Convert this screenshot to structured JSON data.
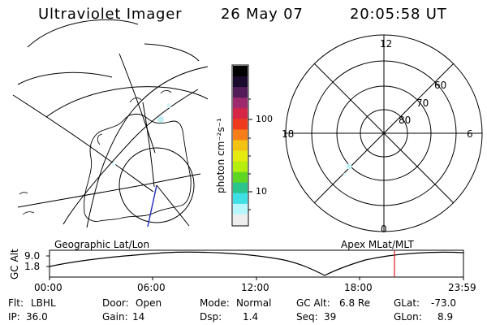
{
  "header": {
    "app_title": "Ultraviolet Imager",
    "date": "26 May 07",
    "time": "20:05:58 UT"
  },
  "colorbar": {
    "label": "photon cm⁻²s⁻¹",
    "ticks": [
      "100",
      "10"
    ],
    "colors": [
      "#000000",
      "#1a0b2e",
      "#531d5a",
      "#9c2a6d",
      "#d52645",
      "#f03a1d",
      "#f67d17",
      "#f2c313",
      "#e7ea11",
      "#b4ef10",
      "#5fd624",
      "#29c58c",
      "#3fe0e5",
      "#b7f6fb",
      "#eeeeee"
    ]
  },
  "panels": {
    "left_label": "Geographic Lat/Lon",
    "right_label": "Apex  MLat/MLT",
    "polar_labels": {
      "mlt_top": "12",
      "mlt_left": "18",
      "mlt_right": "6",
      "mlt_bottom": "0",
      "lat_60": "60",
      "lat_70": "70",
      "lat_80": "80"
    }
  },
  "timeline": {
    "ylabel": "GC Alt",
    "y_ticks": [
      "9.0",
      "1.8"
    ],
    "x_ticks": [
      "00:00",
      "06:00",
      "12:00",
      "18:00",
      "23:59"
    ],
    "marker_color": "#d81b1b"
  },
  "info": {
    "row1": [
      {
        "label": "Flt:",
        "value": "LBHL"
      },
      {
        "label": "Door:",
        "value": "Open"
      },
      {
        "label": "Mode:",
        "value": "Normal"
      },
      {
        "label": "GC Alt:",
        "value": "6.8 Re"
      },
      {
        "label": "GLat:",
        "value": "-73.0"
      }
    ],
    "row2": [
      {
        "label": "IP:",
        "value": "36.0"
      },
      {
        "label": "Gain:",
        "value": "14"
      },
      {
        "label": "Dsp:",
        "value": "1.4"
      },
      {
        "label": "Seq:",
        "value": "39"
      },
      {
        "label": "GLon:",
        "value": "8.9"
      }
    ]
  }
}
